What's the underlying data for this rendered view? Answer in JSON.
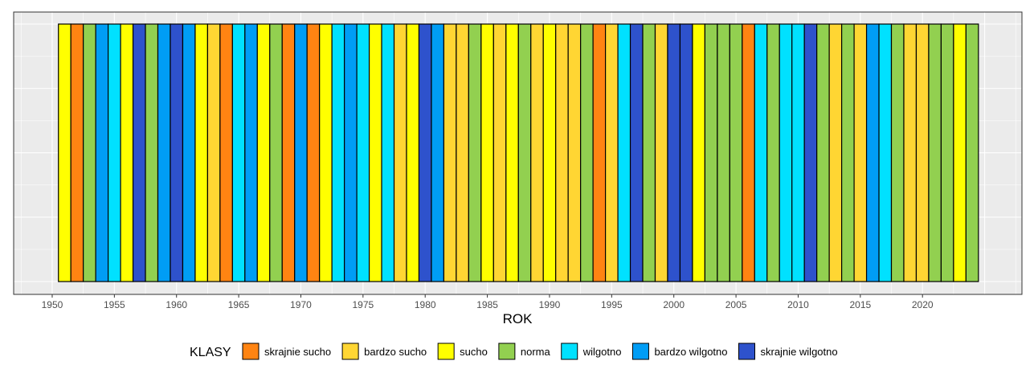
{
  "chart_data": {
    "type": "bar",
    "title": "",
    "xlabel": "ROK",
    "ylabel": "",
    "xlim": [
      1946.9,
      2028.0
    ],
    "x_ticks": [
      1950,
      1955,
      1960,
      1965,
      1970,
      1975,
      1980,
      1985,
      1990,
      1995,
      2000,
      2005,
      2010,
      2015,
      2020
    ],
    "grid": true,
    "legend_position": "bottom",
    "legend_title": "KLASY",
    "classes": [
      {
        "key": "ss",
        "label": "skrajnie sucho",
        "color": "#FF8412"
      },
      {
        "key": "bs",
        "label": "bardzo sucho",
        "color": "#FFD633"
      },
      {
        "key": "s",
        "label": "sucho",
        "color": "#FFFF00"
      },
      {
        "key": "n",
        "label": "norma",
        "color": "#92D050"
      },
      {
        "key": "w",
        "label": "wilgotno",
        "color": "#00E1FF"
      },
      {
        "key": "bw",
        "label": "bardzo wilgotno",
        "color": "#009DF5"
      },
      {
        "key": "sw",
        "label": "skrajnie wilgotno",
        "color": "#2E52CC"
      }
    ],
    "start_year": 1951,
    "years_class": [
      "s",
      "ss",
      "n",
      "bw",
      "w",
      "s",
      "sw",
      "n",
      "bw",
      "sw",
      "bw",
      "s",
      "bs",
      "ss",
      "w",
      "bw",
      "s",
      "n",
      "ss",
      "bw",
      "ss",
      "s",
      "w",
      "bw",
      "w",
      "s",
      "w",
      "bs",
      "s",
      "sw",
      "bw",
      "bs",
      "bs",
      "n",
      "s",
      "bs",
      "s",
      "n",
      "bs",
      "s",
      "bs",
      "bs",
      "n",
      "ss",
      "bs",
      "w",
      "sw",
      "n",
      "bs",
      "sw",
      "sw",
      "s",
      "n",
      "n",
      "n",
      "ss",
      "w",
      "n",
      "w",
      "w",
      "sw",
      "n",
      "bs",
      "n",
      "bs",
      "bw",
      "w",
      "n",
      "bs",
      "bs",
      "n",
      "n",
      "s",
      "n"
    ]
  }
}
